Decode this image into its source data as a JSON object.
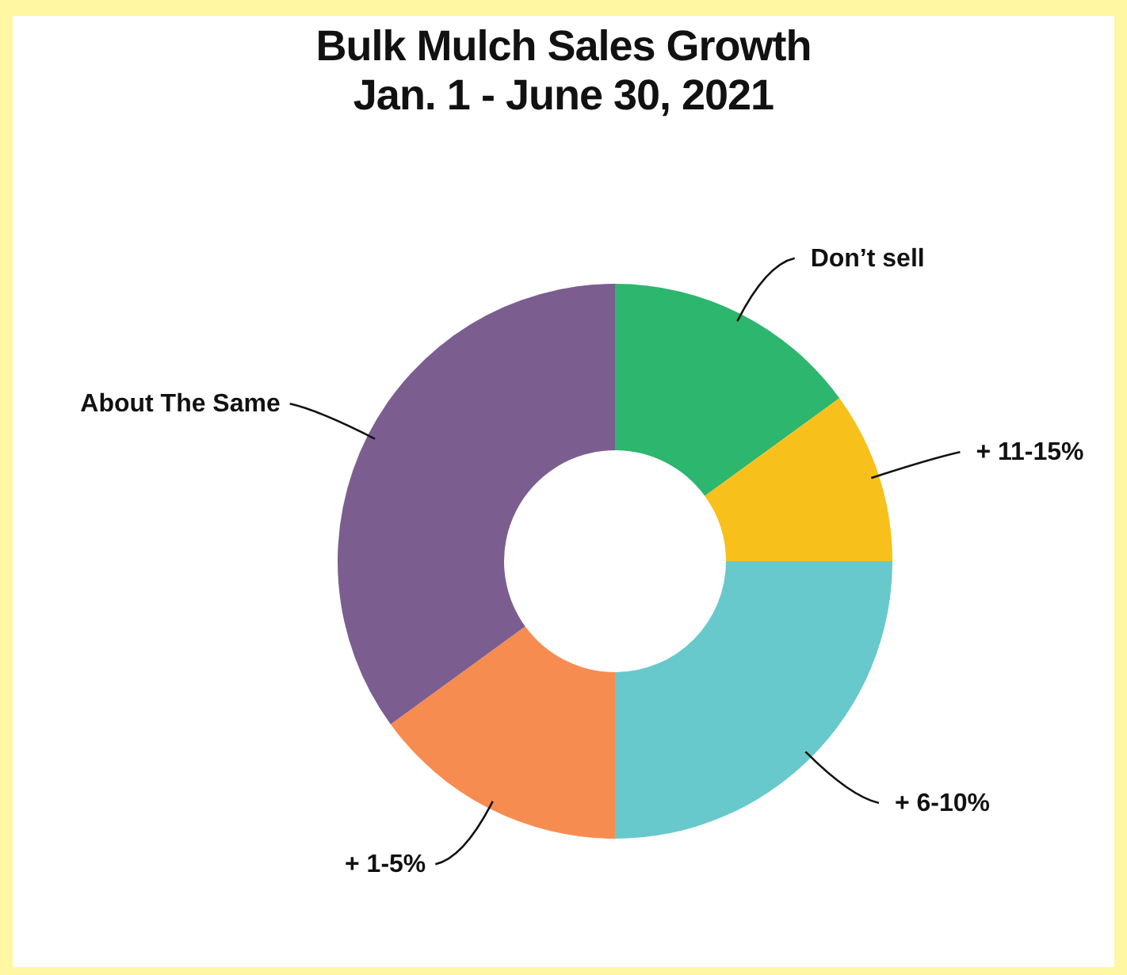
{
  "chart_data": {
    "type": "donut",
    "title": "Bulk Mulch Sales Growth\nJan. 1 - June 30, 2021",
    "categories": [
      "Don’t sell",
      "+ 11-15%",
      "+ 6-10%",
      "+ 1-5%",
      "About The Same"
    ],
    "values": [
      15,
      10,
      25,
      15,
      35
    ],
    "colors": [
      "#2db66e",
      "#f8c01a",
      "#68c9cc",
      "#f78c50",
      "#7b5e8f"
    ],
    "legend": false
  }
}
